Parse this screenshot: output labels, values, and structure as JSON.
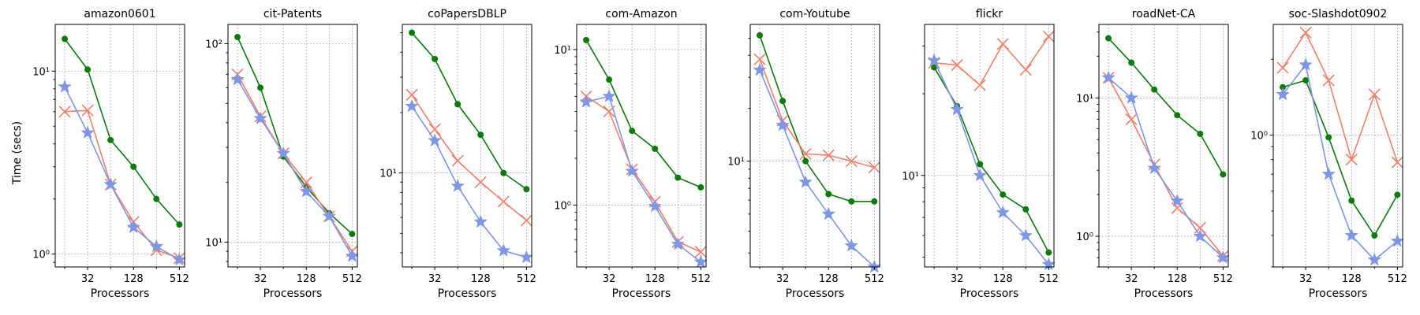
{
  "chart_data": {
    "type": "line",
    "ylabel": "Time (secs)",
    "xlabel": "Processors",
    "yscale": "log",
    "x": [
      16,
      32,
      64,
      128,
      256,
      512
    ],
    "xticks": [
      32,
      128,
      512
    ],
    "xtick_labels": [
      "32",
      "128",
      "512"
    ],
    "series_styles": [
      {
        "name": "series-green",
        "color": "#0b7a0b",
        "marker": "circle"
      },
      {
        "name": "series-salmon",
        "color": "#f08068",
        "marker": "x"
      },
      {
        "name": "series-blue",
        "color": "#7f96e6",
        "marker": "star"
      }
    ],
    "panels": [
      {
        "title": "amazon0601",
        "ylim": [
          0.85,
          18
        ],
        "yticks": [
          1,
          10
        ],
        "ytick_labels": [
          "10⁰",
          "10¹"
        ],
        "series": [
          {
            "name": "series-green",
            "values": [
              15,
              10.2,
              4.2,
              3.0,
              2.0,
              1.45
            ]
          },
          {
            "name": "series-salmon",
            "values": [
              6.0,
              6.1,
              2.4,
              1.5,
              1.05,
              0.95
            ]
          },
          {
            "name": "series-blue",
            "values": [
              8.2,
              4.6,
              2.4,
              1.4,
              1.1,
              0.93
            ]
          }
        ]
      },
      {
        "title": "cit-Patents",
        "ylim": [
          7.5,
          125
        ],
        "yticks": [
          10,
          100
        ],
        "ytick_labels": [
          "10¹",
          "10²"
        ],
        "series": [
          {
            "name": "series-green",
            "values": [
              108,
              60,
              27,
              19,
              14,
              11
            ]
          },
          {
            "name": "series-salmon",
            "values": [
              70,
              43,
              28,
              20,
              13.5,
              9
            ]
          },
          {
            "name": "series-blue",
            "values": [
              66,
              42,
              28,
              18,
              13.5,
              8.5
            ]
          }
        ]
      },
      {
        "title": "coPapersDBLP",
        "ylim": [
          3.4,
          55
        ],
        "yticks": [
          10
        ],
        "ytick_labels": [
          "10¹"
        ],
        "series": [
          {
            "name": "series-green",
            "values": [
              50,
              37,
              22,
              15.5,
              10,
              8.3
            ]
          },
          {
            "name": "series-salmon",
            "values": [
              24.5,
              16.5,
              11.5,
              9.0,
              7.2,
              5.8
            ]
          },
          {
            "name": "series-blue",
            "values": [
              21.5,
              14.5,
              8.6,
              5.7,
              4.1,
              3.8
            ]
          }
        ]
      },
      {
        "title": "com-Amazon",
        "ylim": [
          0.4,
          14.5
        ],
        "yticks": [
          1,
          10
        ],
        "ytick_labels": [
          "10⁰",
          "10¹"
        ],
        "series": [
          {
            "name": "series-green",
            "values": [
              11.5,
              6.4,
              3.0,
              2.3,
              1.5,
              1.3
            ]
          },
          {
            "name": "series-salmon",
            "values": [
              5.0,
              4.0,
              1.7,
              1.05,
              0.58,
              0.5
            ]
          },
          {
            "name": "series-blue",
            "values": [
              4.6,
              5.0,
              1.65,
              0.98,
              0.56,
              0.43
            ]
          }
        ]
      },
      {
        "title": "com-Youtube",
        "ylim": [
          2.5,
          60
        ],
        "yticks": [
          10
        ],
        "ytick_labels": [
          "10¹"
        ],
        "series": [
          {
            "name": "series-green",
            "values": [
              52,
              22,
              10,
              6.5,
              5.9,
              5.9
            ]
          },
          {
            "name": "series-salmon",
            "values": [
              38,
              17,
              11,
              10.8,
              10,
              9.2
            ]
          },
          {
            "name": "series-blue",
            "values": [
              33,
              16,
              7.6,
              5.0,
              3.3,
              2.5
            ]
          }
        ]
      },
      {
        "title": "flickr",
        "ylim": [
          4.6,
          36
        ],
        "yticks": [
          10
        ],
        "ytick_labels": [
          "10¹"
        ],
        "series": [
          {
            "name": "series-green",
            "values": [
              25,
              18,
              11,
              8.5,
              7.5,
              5.2
            ]
          },
          {
            "name": "series-salmon",
            "values": [
              26,
              25.5,
              21.5,
              30.5,
              24.5,
              32.5
            ]
          },
          {
            "name": "series-blue",
            "values": [
              26.5,
              17.5,
              10,
              7.3,
              6.0,
              4.7
            ]
          }
        ]
      },
      {
        "title": "roadNet-CA",
        "ylim": [
          0.6,
          34
        ],
        "yticks": [
          1,
          10
        ],
        "ytick_labels": [
          "10⁰",
          "10¹"
        ],
        "series": [
          {
            "name": "series-green",
            "values": [
              27,
              18,
              11.5,
              7.5,
              5.5,
              2.8
            ]
          },
          {
            "name": "series-salmon",
            "values": [
              14,
              7,
              3.3,
              1.6,
              1.15,
              0.72
            ]
          },
          {
            "name": "series-blue",
            "values": [
              14,
              10,
              3.1,
              1.8,
              1.0,
              0.7
            ]
          }
        ]
      },
      {
        "title": "soc-Slashdot0902",
        "ylim": [
          0.3,
          2.75
        ],
        "yticks": [
          1
        ],
        "ytick_labels": [
          "10⁰"
        ],
        "series": [
          {
            "name": "series-green",
            "values": [
              1.55,
              1.65,
              0.98,
              0.55,
              0.4,
              0.58
            ]
          },
          {
            "name": "series-salmon",
            "values": [
              1.85,
              2.55,
              1.65,
              0.8,
              1.45,
              0.78
            ]
          },
          {
            "name": "series-blue",
            "values": [
              1.45,
              1.9,
              0.7,
              0.4,
              0.32,
              0.38
            ]
          }
        ]
      }
    ]
  }
}
